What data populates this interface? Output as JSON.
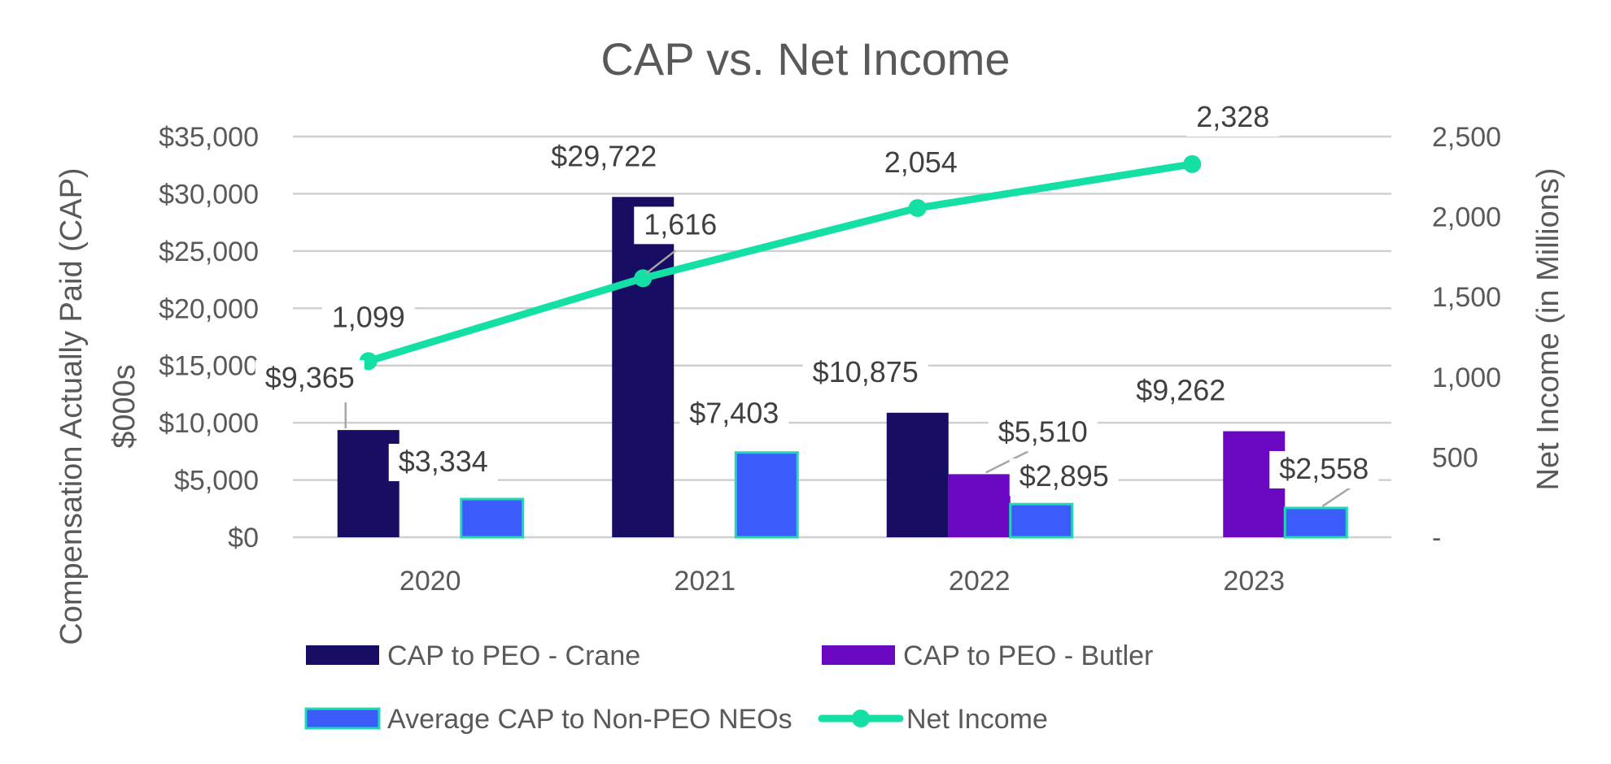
{
  "chart_data": {
    "type": "bar",
    "title": "CAP vs. Net Income",
    "categories": [
      "2020",
      "2021",
      "2022",
      "2023"
    ],
    "ylabel_line1": "Compensation Actually Paid (CAP)",
    "ylabel_line2": "$000s",
    "y2label": "Net Income (in Millions)",
    "ylim": [
      0,
      35000
    ],
    "y_ticks": [
      0,
      5000,
      10000,
      15000,
      20000,
      25000,
      30000,
      35000
    ],
    "y_tick_labels": [
      "$0",
      "$5,000",
      "$10,000",
      "$15,000",
      "$20,000",
      "$25,000",
      "$30,000",
      "$35,000"
    ],
    "y2lim": [
      0,
      2500
    ],
    "y2_ticks": [
      0,
      500,
      1000,
      1500,
      2000,
      2500
    ],
    "y2_tick_labels": [
      "-",
      "500",
      "1,000",
      "1,500",
      "2,000",
      "2,500"
    ],
    "grid": true,
    "legend_position": "bottom",
    "series": [
      {
        "name": "CAP to PEO - Crane",
        "kind": "bar",
        "slot": 0,
        "color": "#170d63",
        "values": [
          9365,
          29722,
          10875,
          null
        ],
        "labels": [
          "$9,365",
          "$29,722",
          "$10,875",
          null
        ]
      },
      {
        "name": "CAP to PEO - Butler",
        "kind": "bar",
        "slot": 1,
        "color": "#6a08c2",
        "values": [
          null,
          null,
          5510,
          9262
        ],
        "labels": [
          null,
          null,
          "$5,510",
          "$9,262"
        ]
      },
      {
        "name": "Average CAP to Non-PEO NEOs",
        "kind": "bar",
        "slot": 2,
        "color": "#3b5bfb",
        "border": "#1fd9b5",
        "values": [
          3334,
          7403,
          2895,
          2558
        ],
        "labels": [
          "$3,334",
          "$7,403",
          "$2,895",
          "$2,558"
        ]
      },
      {
        "name": "Net Income",
        "kind": "line",
        "axis": "secondary",
        "color": "#14e0a5",
        "values": [
          1099,
          1616,
          2054,
          2328
        ],
        "labels": [
          "1,099",
          "1,616",
          "2,054",
          "2,328"
        ]
      }
    ]
  }
}
